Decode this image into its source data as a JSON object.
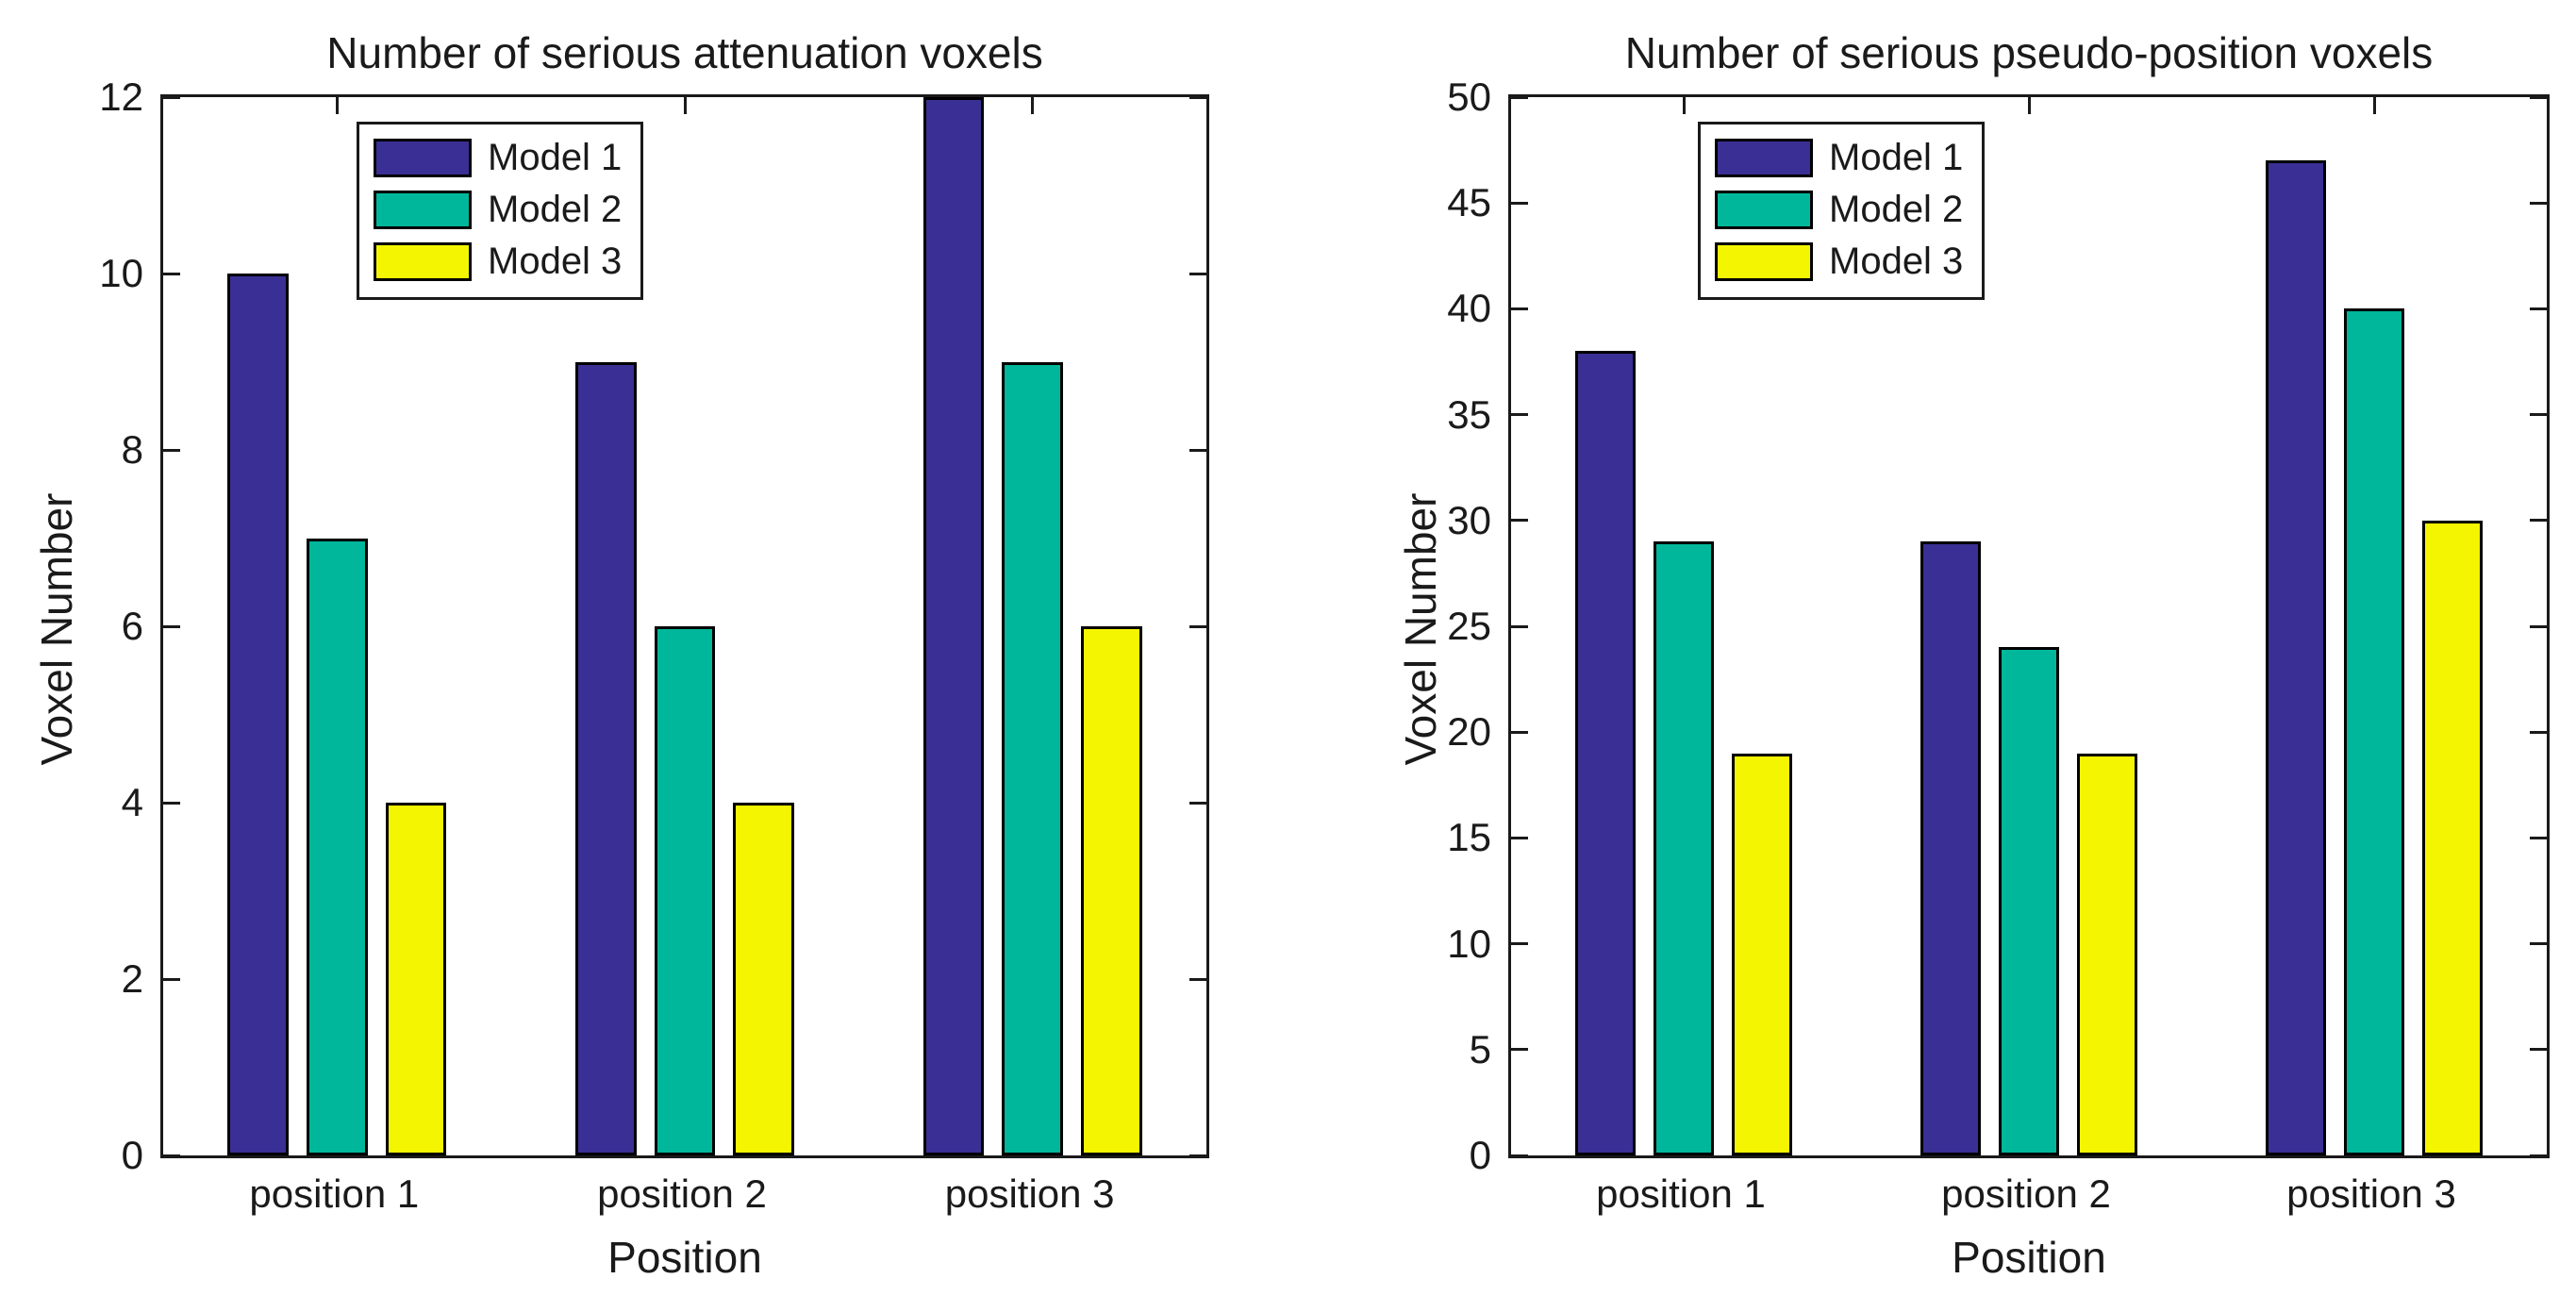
{
  "colors": {
    "model1": "#3A2F94",
    "model2": "#00B79B",
    "model3": "#F4F500",
    "axis": "#1a1a1a",
    "background": "#ffffff"
  },
  "chart_data": [
    {
      "type": "bar",
      "title": "Number of serious attenuation voxels",
      "xlabel": "Position",
      "ylabel": "Voxel Number",
      "categories": [
        "position 1",
        "position 2",
        "position 3"
      ],
      "series": [
        {
          "name": "Model 1",
          "color": "#3A2F94",
          "values": [
            10,
            9,
            12
          ]
        },
        {
          "name": "Model 2",
          "color": "#00B79B",
          "values": [
            7,
            6,
            9
          ]
        },
        {
          "name": "Model 3",
          "color": "#F4F500",
          "values": [
            4,
            4,
            6
          ]
        }
      ],
      "ylim": [
        0,
        12
      ],
      "ytick_step": 2,
      "ytick_labels": [
        "0",
        "2",
        "4",
        "6",
        "8",
        "10",
        "12"
      ],
      "grid": false,
      "legend_position": "inside-top-left",
      "tick_direction": "in"
    },
    {
      "type": "bar",
      "title": "Number of serious pseudo-position voxels",
      "xlabel": "Position",
      "ylabel": "Voxel Number",
      "categories": [
        "position 1",
        "position 2",
        "position 3"
      ],
      "series": [
        {
          "name": "Model 1",
          "color": "#3A2F94",
          "values": [
            38,
            29,
            47
          ]
        },
        {
          "name": "Model 2",
          "color": "#00B79B",
          "values": [
            29,
            24,
            40
          ]
        },
        {
          "name": "Model 3",
          "color": "#F4F500",
          "values": [
            19,
            19,
            30
          ]
        }
      ],
      "ylim": [
        0,
        50
      ],
      "ytick_step": 5,
      "ytick_labels": [
        "0",
        "5",
        "10",
        "15",
        "20",
        "25",
        "30",
        "35",
        "40",
        "45",
        "50"
      ],
      "grid": false,
      "legend_position": "inside-top-left",
      "tick_direction": "in"
    }
  ]
}
